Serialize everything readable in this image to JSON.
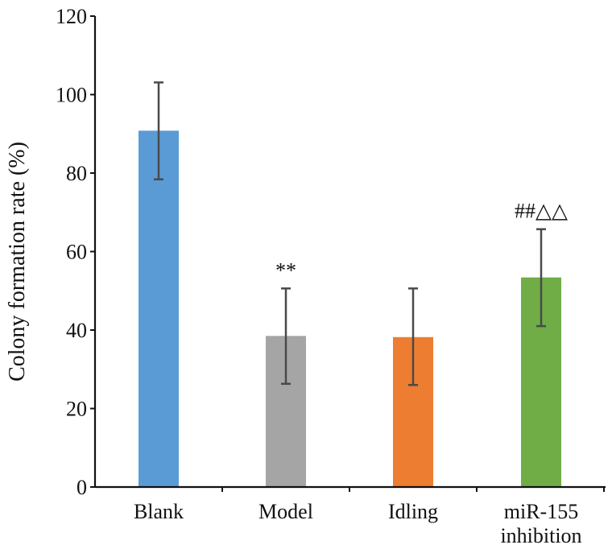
{
  "chart_data": {
    "type": "bar",
    "title": "",
    "ylabel": "Colony formation rate (%)",
    "xlabel": "",
    "ylim": [
      0,
      120
    ],
    "yticks": [
      0,
      20,
      40,
      60,
      80,
      100,
      120
    ],
    "grid": false,
    "categories": [
      [
        "Blank"
      ],
      [
        "Model"
      ],
      [
        "Idling"
      ],
      [
        "miR-155",
        "inhibition"
      ]
    ],
    "values": [
      90.8,
      38.5,
      38.2,
      53.4
    ],
    "error_low": [
      78.4,
      26.3,
      26.0,
      41.0
    ],
    "error_high": [
      103.1,
      50.6,
      50.6,
      65.7
    ],
    "annotations": [
      "",
      "**",
      "",
      "##△△"
    ],
    "colors": [
      "#5b9bd5",
      "#a5a5a5",
      "#ed7d31",
      "#70ad47"
    ]
  }
}
